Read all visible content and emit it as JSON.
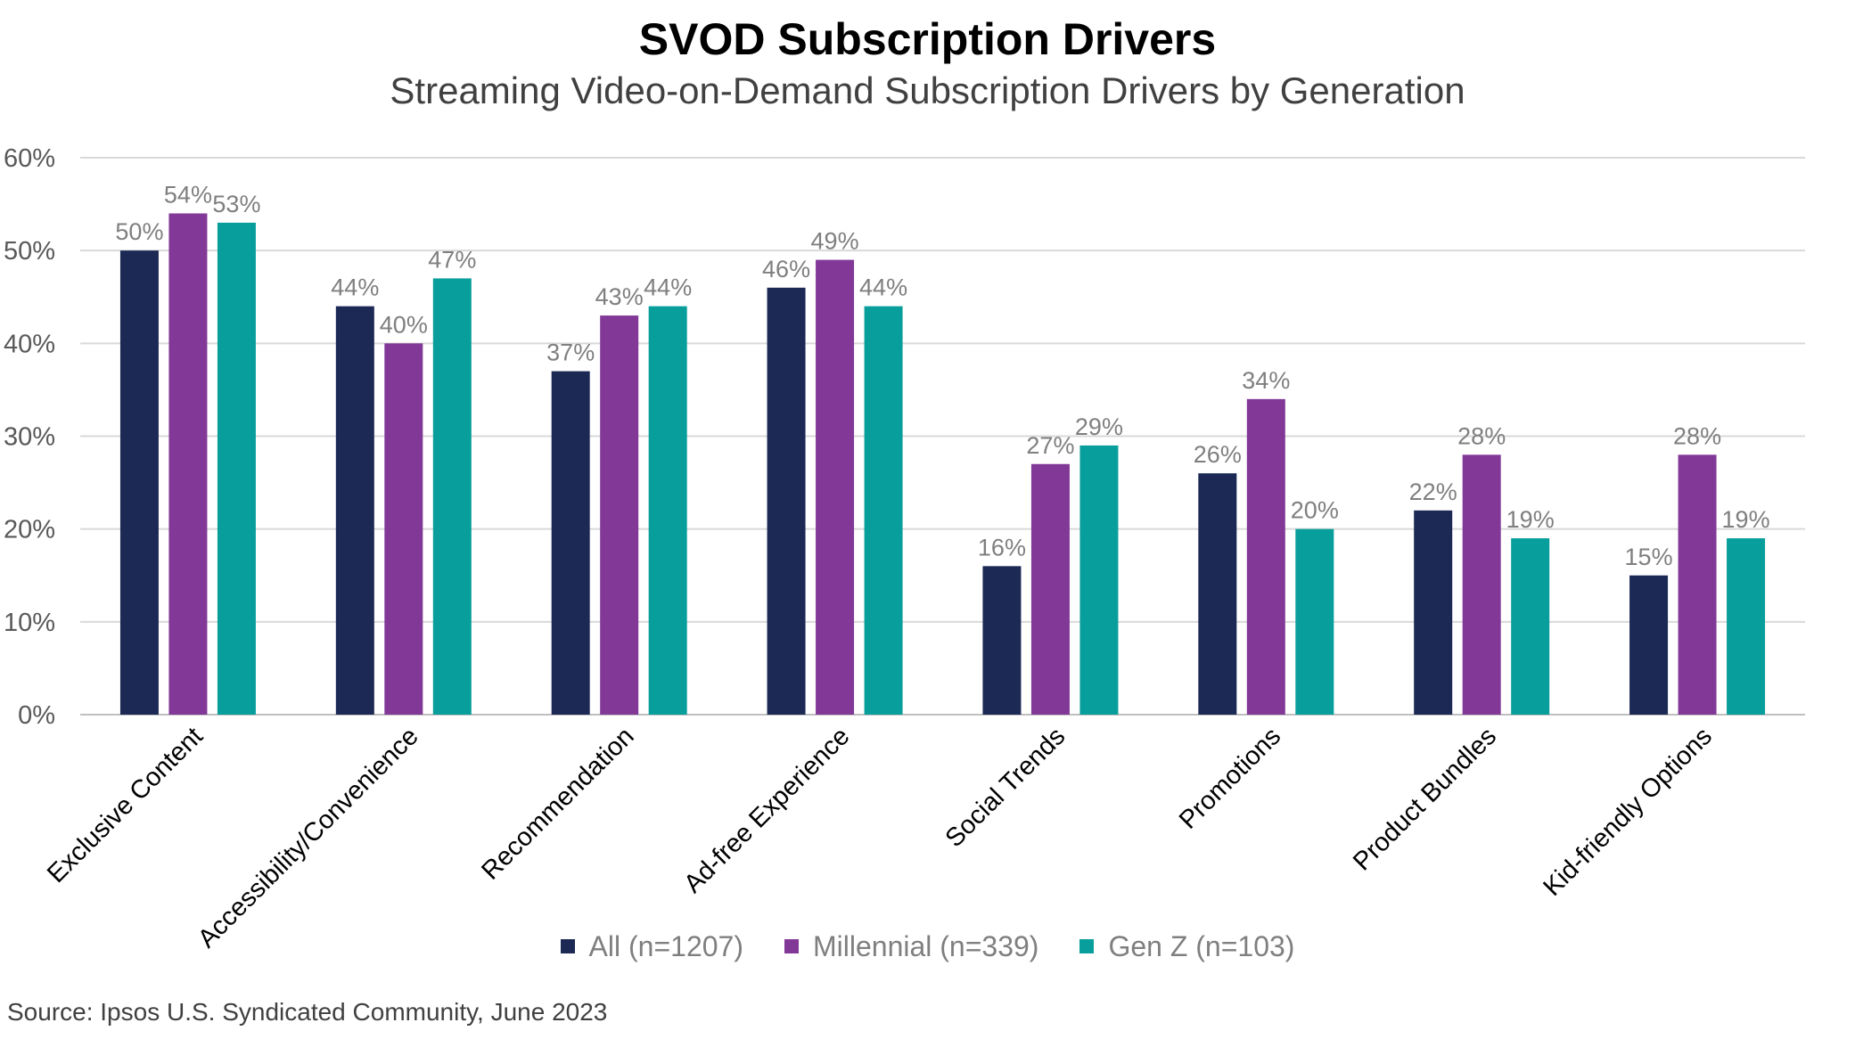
{
  "chart_data": {
    "type": "bar",
    "title": "SVOD Subscription Drivers",
    "subtitle": "Streaming Video-on-Demand Subscription Drivers by Generation",
    "categories": [
      "Exclusive Content",
      "Accessibility/Convenience",
      "Recommendation",
      "Ad-free Experience",
      "Social Trends",
      "Promotions",
      "Product Bundles",
      "Kid-friendly Options"
    ],
    "series": [
      {
        "name": "All (n=1207)",
        "color": "#1c2955",
        "values": [
          50,
          44,
          37,
          46,
          16,
          26,
          22,
          15
        ],
        "labels": [
          "50%",
          "44%",
          "37%",
          "46%",
          "16%",
          "26%",
          "22%",
          "15%"
        ]
      },
      {
        "name": "Millennial (n=339)",
        "color": "#823897",
        "values": [
          54,
          40,
          43,
          49,
          27,
          34,
          28,
          28
        ],
        "labels": [
          "54%",
          "40%",
          "43%",
          "49%",
          "27%",
          "34%",
          "28%",
          "28%"
        ]
      },
      {
        "name": "Gen Z (n=103)",
        "color": "#079e9b",
        "values": [
          53,
          47,
          44,
          44,
          29,
          20,
          19,
          19
        ],
        "labels": [
          "53%",
          "47%",
          "44%",
          "44%",
          "29%",
          "20%",
          "19%",
          "19%"
        ]
      }
    ],
    "ylim": [
      0,
      60
    ],
    "yticks": [
      0,
      10,
      20,
      30,
      40,
      50,
      60
    ],
    "ytick_labels": [
      "0%",
      "10%",
      "20%",
      "30%",
      "40%",
      "50%",
      "60%"
    ],
    "xlabel": "",
    "ylabel": "",
    "grid": true,
    "legend_position": "bottom",
    "source": "Source: Ipsos U.S. Syndicated Community, June 2023"
  }
}
